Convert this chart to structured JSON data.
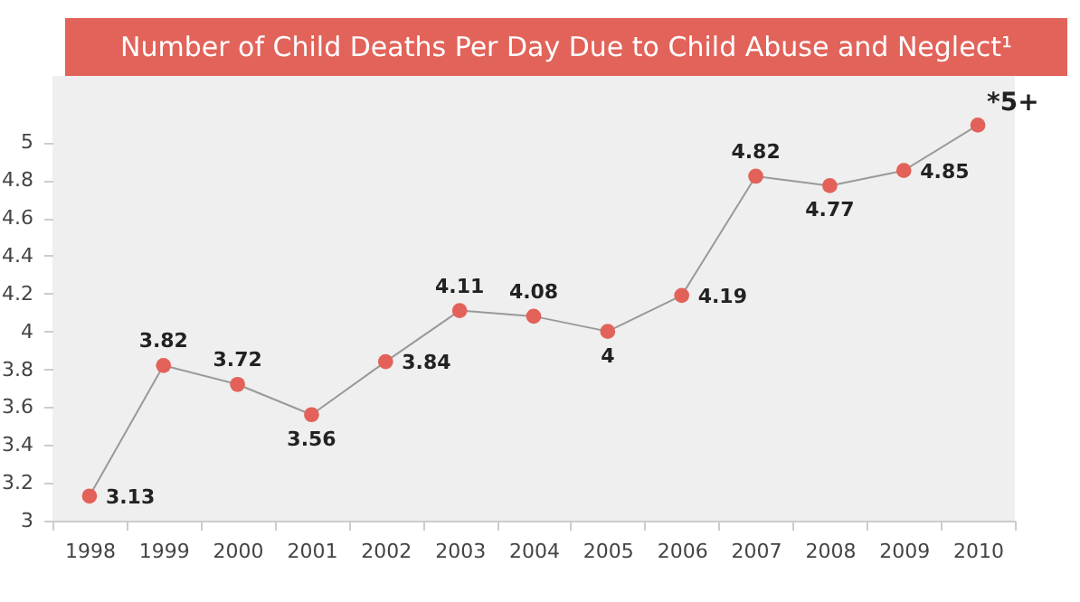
{
  "chart_data": {
    "type": "line",
    "title": "Number of Child Deaths Per Day Due to Child Abuse and Neglect¹",
    "categories": [
      "1998",
      "1999",
      "2000",
      "2001",
      "2002",
      "2003",
      "2004",
      "2005",
      "2006",
      "2007",
      "2008",
      "2009",
      "2010"
    ],
    "series": [
      {
        "color": "#e2625a",
        "values": [
          3.13,
          3.82,
          3.72,
          3.56,
          3.84,
          4.11,
          4.08,
          4,
          4.19,
          4.82,
          4.77,
          4.85,
          5.09
        ],
        "value_labels": [
          "3.13",
          "3.82",
          "3.72",
          "3.56",
          "3.84",
          "4.11",
          "4.08",
          "4",
          "4.19",
          "4.82",
          "4.77",
          "4.85",
          "*5+"
        ]
      }
    ],
    "ylim": [
      3,
      5.35
    ],
    "yticks": [
      3,
      3.2,
      3.4,
      3.6,
      3.8,
      4,
      4.2,
      4.4,
      4.6,
      4.8,
      5
    ],
    "grid": false,
    "marker": "circle",
    "line_style": "solid"
  }
}
